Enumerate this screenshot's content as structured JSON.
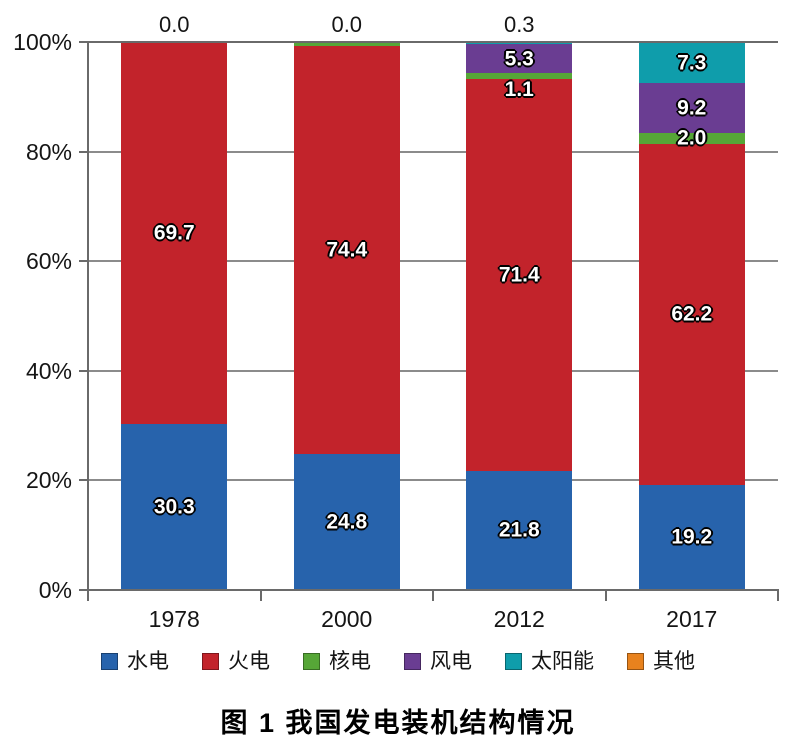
{
  "figure": {
    "caption": "图 1  我国发电装机结构情况"
  },
  "chart_data": {
    "type": "bar",
    "subtype": "stacked-100-percent",
    "title": "图 1  我国发电装机结构情况",
    "xlabel": "",
    "ylabel": "",
    "categories": [
      "1978",
      "2000",
      "2012",
      "2017"
    ],
    "series": [
      {
        "name": "水电",
        "color": "#2763AC",
        "values": [
          30.3,
          24.8,
          21.8,
          19.2
        ],
        "labels": [
          "30.3",
          "24.8",
          "21.8",
          "19.2"
        ]
      },
      {
        "name": "火电",
        "color": "#C2232B",
        "values": [
          69.7,
          74.4,
          71.4,
          62.2
        ],
        "labels": [
          "69.7",
          "74.4",
          "71.4",
          "62.2"
        ]
      },
      {
        "name": "核电",
        "color": "#56A637",
        "values": [
          0.0,
          0.8,
          1.1,
          2.0
        ],
        "labels": [
          "",
          "",
          "1.1",
          "2.0"
        ]
      },
      {
        "name": "风电",
        "color": "#6A3D92",
        "values": [
          0.0,
          0.0,
          5.3,
          9.2
        ],
        "labels": [
          "",
          "",
          "5.3",
          "9.2"
        ]
      },
      {
        "name": "太阳能",
        "color": "#0F9DAB",
        "values": [
          0.0,
          0.0,
          0.3,
          7.3
        ],
        "labels": [
          "",
          "",
          "",
          "7.3"
        ]
      },
      {
        "name": "其他",
        "color": "#E8821E",
        "values": [
          0.0,
          0.0,
          0.0,
          0.0
        ],
        "labels": [
          "",
          "",
          "",
          ""
        ]
      }
    ],
    "above_bar_labels": [
      "0.0",
      "0.0",
      "0.3",
      ""
    ],
    "y_ticks": [
      "0%",
      "20%",
      "40%",
      "60%",
      "80%",
      "100%"
    ],
    "ylim": [
      0,
      100
    ],
    "grid": true,
    "legend_position": "bottom"
  }
}
